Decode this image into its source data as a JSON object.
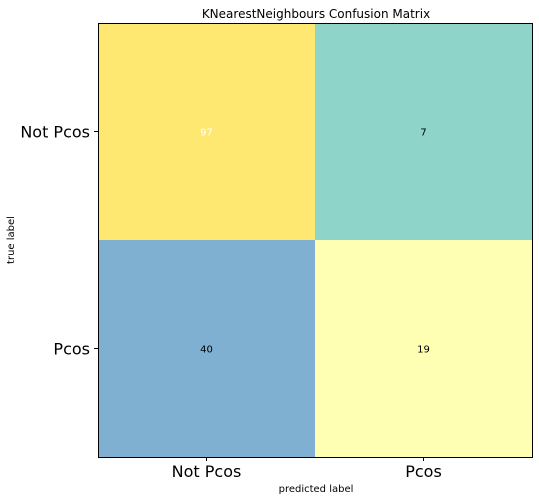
{
  "chart_data": {
    "type": "heatmap",
    "title": "KNearestNeighbours Confusion Matrix",
    "xlabel": "predicted label",
    "ylabel": "true label",
    "x_categories": [
      "Not Pcos",
      "Pcos"
    ],
    "y_categories": [
      "Not Pcos",
      "Pcos"
    ],
    "values": [
      [
        97,
        7
      ],
      [
        40,
        19
      ]
    ],
    "cell_colors": [
      [
        "#fee872",
        "#8fd4c8"
      ],
      [
        "#7fb0d2",
        "#ffffb3"
      ]
    ],
    "cell_text_colors": [
      [
        "#ffffff",
        "#000000"
      ],
      [
        "#000000",
        "#000000"
      ]
    ],
    "grid": false,
    "legend": "none"
  }
}
